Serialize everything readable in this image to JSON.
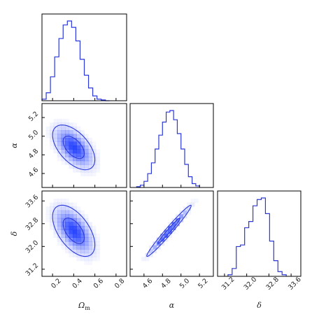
{
  "chart_data": {
    "type": "corner",
    "colors": {
      "line": "#2b38d9",
      "fill": "#1f3cff"
    },
    "parameters": [
      {
        "symbol": "Ω_m",
        "label_base": "Ω",
        "label_sub": "m",
        "ticks": [
          "0.2",
          "0.4",
          "0.6",
          "0.8"
        ],
        "range": [
          0.1,
          0.9
        ]
      },
      {
        "symbol": "α",
        "label_base": "α",
        "label_sub": "",
        "ticks": [
          "4.6",
          "4.8",
          "5.0",
          "5.2"
        ],
        "range": [
          4.45,
          5.35
        ]
      },
      {
        "symbol": "δ",
        "label_base": "δ",
        "label_sub": "",
        "ticks": [
          "31.2",
          "32.0",
          "32.8",
          "33.6"
        ],
        "range": [
          30.95,
          33.95
        ]
      }
    ],
    "histograms": [
      {
        "param": "Ω_m",
        "bins": [
          0.12,
          0.16,
          0.2,
          0.24,
          0.28,
          0.32,
          0.36,
          0.4,
          0.44,
          0.48,
          0.52,
          0.56,
          0.6,
          0.64,
          0.68,
          0.72
        ],
        "counts": [
          0.02,
          0.1,
          0.3,
          0.55,
          0.78,
          0.95,
          1.0,
          0.92,
          0.75,
          0.52,
          0.32,
          0.16,
          0.06,
          0.02,
          0.01,
          0.0
        ]
      },
      {
        "param": "α",
        "bins": [
          4.54,
          4.58,
          4.62,
          4.66,
          4.7,
          4.74,
          4.78,
          4.82,
          4.86,
          4.9,
          4.94,
          4.98,
          5.02,
          5.06,
          5.1,
          5.14,
          5.18
        ],
        "counts": [
          0.01,
          0.03,
          0.08,
          0.18,
          0.32,
          0.5,
          0.68,
          0.85,
          0.98,
          1.0,
          0.88,
          0.7,
          0.5,
          0.3,
          0.14,
          0.05,
          0.02
        ]
      },
      {
        "param": "δ",
        "bins": [
          31.4,
          31.55,
          31.7,
          31.85,
          32.0,
          32.15,
          32.3,
          32.45,
          32.6,
          32.75,
          32.9,
          33.05,
          33.2,
          33.35
        ],
        "counts": [
          0.02,
          0.1,
          0.38,
          0.4,
          0.62,
          0.7,
          0.9,
          0.98,
          1.0,
          0.8,
          0.45,
          0.2,
          0.06,
          0.02
        ]
      }
    ],
    "joint": [
      {
        "x": "Ω_m",
        "y": "α",
        "center": [
          0.4,
          4.88
        ],
        "sigma": [
          0.1,
          0.12
        ],
        "rho": -0.55
      },
      {
        "x": "Ω_m",
        "y": "δ",
        "center": [
          0.4,
          32.55
        ],
        "sigma": [
          0.1,
          0.45
        ],
        "rho": -0.55
      },
      {
        "x": "α",
        "y": "δ",
        "center": [
          4.87,
          32.55
        ],
        "sigma": [
          0.12,
          0.45
        ],
        "rho": 0.98
      }
    ],
    "contour_levels_sigma": [
      1,
      2
    ],
    "grid": false
  }
}
